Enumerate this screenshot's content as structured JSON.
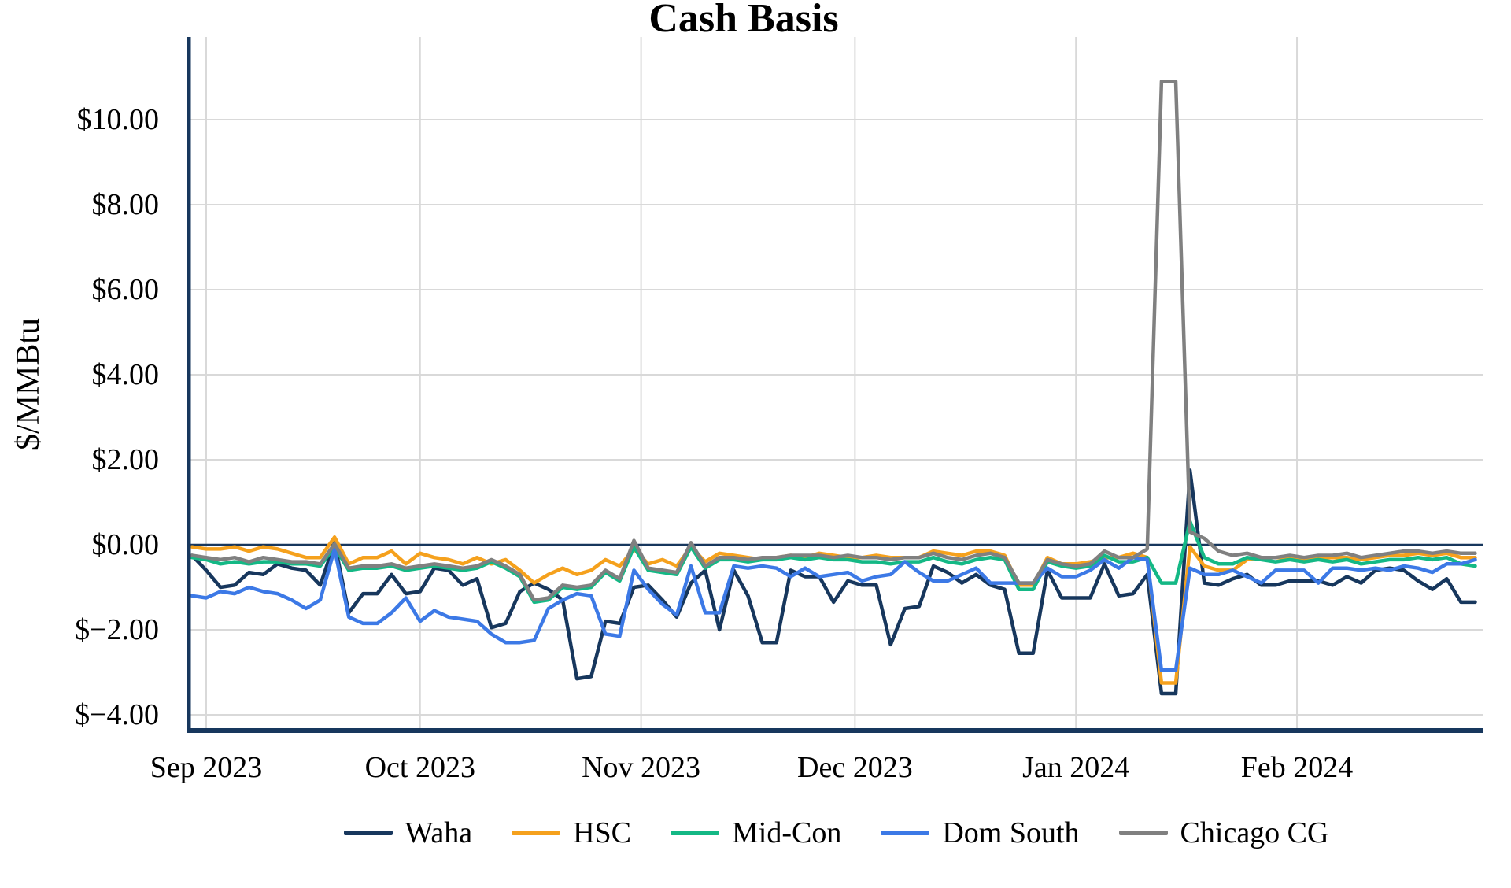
{
  "title": "Cash Basis",
  "y_axis": {
    "label": "$/MMBtu",
    "ticks": [
      {
        "label": "$10.00",
        "value": 10
      },
      {
        "label": "$8.00",
        "value": 8
      },
      {
        "label": "$6.00",
        "value": 6
      },
      {
        "label": "$4.00",
        "value": 4
      },
      {
        "label": "$2.00",
        "value": 2
      },
      {
        "label": "$0.00",
        "value": 0
      },
      {
        "label": "$−2.00",
        "value": -2
      },
      {
        "label": "$−4.00",
        "value": -4
      }
    ]
  },
  "x_axis": {
    "ticks": [
      {
        "label": "Sep 2023",
        "day": 0
      },
      {
        "label": "Oct 2023",
        "day": 30
      },
      {
        "label": "Nov 2023",
        "day": 61
      },
      {
        "label": "Dec 2023",
        "day": 91
      },
      {
        "label": "Jan 2024",
        "day": 122
      },
      {
        "label": "Feb 2024",
        "day": 153
      }
    ]
  },
  "colors": {
    "axis": "#17375d",
    "zero_line": "#17375d",
    "gridline": "#d9d9d9",
    "background": "#ffffff"
  },
  "chart_data": {
    "type": "line",
    "title": "Cash Basis",
    "xlabel": "",
    "ylabel": "$/MMBtu",
    "ylim": [
      -4.6,
      11.95
    ],
    "grid": true,
    "legend_position": "bottom",
    "x_description": "daily values, days since Sep 1 2023 (sampled every 2 days)",
    "x_start_day": -2,
    "x_step_days": 2,
    "x_tick_days": [
      0,
      30,
      61,
      91,
      122,
      153
    ],
    "x_tick_labels": [
      "Sep 2023",
      "Oct 2023",
      "Nov 2023",
      "Dec 2023",
      "Jan 2024",
      "Feb 2024"
    ],
    "series": [
      {
        "name": "Waha",
        "color": "#17375d",
        "values": [
          -0.25,
          -0.6,
          -1.0,
          -0.95,
          -0.65,
          -0.7,
          -0.45,
          -0.55,
          -0.6,
          -0.95,
          0.05,
          -1.6,
          -1.15,
          -1.15,
          -0.7,
          -1.15,
          -1.1,
          -0.55,
          -0.6,
          -0.95,
          -0.8,
          -1.95,
          -1.85,
          -1.1,
          -0.9,
          -1.05,
          -1.3,
          -3.15,
          -3.1,
          -1.8,
          -1.85,
          -1.0,
          -0.95,
          -1.3,
          -1.7,
          -0.9,
          -0.6,
          -2.0,
          -0.6,
          -1.2,
          -2.3,
          -2.3,
          -0.6,
          -0.75,
          -0.75,
          -1.35,
          -0.85,
          -0.95,
          -0.95,
          -2.35,
          -1.5,
          -1.45,
          -0.5,
          -0.65,
          -0.9,
          -0.7,
          -0.95,
          -1.05,
          -2.55,
          -2.55,
          -0.6,
          -1.25,
          -1.25,
          -1.25,
          -0.45,
          -1.2,
          -1.15,
          -0.7,
          -3.5,
          -3.5,
          1.75,
          -0.9,
          -0.95,
          -0.8,
          -0.7,
          -0.95,
          -0.95,
          -0.85,
          -0.85,
          -0.85,
          -0.95,
          -0.75,
          -0.9,
          -0.6,
          -0.55,
          -0.6,
          -0.85,
          -1.05,
          -0.8,
          -1.35,
          -1.35
        ]
      },
      {
        "name": "HSC",
        "color": "#f5a11d",
        "values": [
          -0.05,
          -0.1,
          -0.1,
          -0.05,
          -0.15,
          -0.05,
          -0.1,
          -0.2,
          -0.3,
          -0.3,
          0.18,
          -0.45,
          -0.3,
          -0.3,
          -0.15,
          -0.45,
          -0.2,
          -0.3,
          -0.35,
          -0.45,
          -0.3,
          -0.45,
          -0.35,
          -0.6,
          -0.9,
          -0.7,
          -0.55,
          -0.7,
          -0.6,
          -0.35,
          -0.5,
          -0.1,
          -0.45,
          -0.35,
          -0.5,
          -0.05,
          -0.4,
          -0.2,
          -0.25,
          -0.3,
          -0.35,
          -0.3,
          -0.25,
          -0.3,
          -0.2,
          -0.25,
          -0.3,
          -0.3,
          -0.25,
          -0.3,
          -0.3,
          -0.3,
          -0.15,
          -0.2,
          -0.25,
          -0.15,
          -0.15,
          -0.25,
          -0.95,
          -0.95,
          -0.3,
          -0.45,
          -0.45,
          -0.4,
          -0.3,
          -0.3,
          -0.2,
          -0.3,
          -3.25,
          -3.25,
          -0.05,
          -0.5,
          -0.6,
          -0.6,
          -0.35,
          -0.3,
          -0.3,
          -0.3,
          -0.35,
          -0.3,
          -0.3,
          -0.3,
          -0.35,
          -0.3,
          -0.25,
          -0.25,
          -0.2,
          -0.25,
          -0.2,
          -0.3,
          -0.3
        ]
      },
      {
        "name": "Mid-Con",
        "color": "#14b885",
        "values": [
          -0.3,
          -0.35,
          -0.45,
          -0.4,
          -0.45,
          -0.4,
          -0.4,
          -0.45,
          -0.45,
          -0.5,
          -0.05,
          -0.6,
          -0.55,
          -0.55,
          -0.5,
          -0.6,
          -0.55,
          -0.5,
          -0.55,
          -0.6,
          -0.55,
          -0.4,
          -0.55,
          -0.75,
          -1.35,
          -1.3,
          -1.0,
          -1.05,
          -1.0,
          -0.65,
          -0.85,
          -0.05,
          -0.6,
          -0.65,
          -0.7,
          -0.05,
          -0.55,
          -0.35,
          -0.35,
          -0.4,
          -0.35,
          -0.35,
          -0.3,
          -0.35,
          -0.3,
          -0.35,
          -0.35,
          -0.4,
          -0.4,
          -0.45,
          -0.4,
          -0.4,
          -0.3,
          -0.4,
          -0.45,
          -0.35,
          -0.3,
          -0.35,
          -1.05,
          -1.05,
          -0.4,
          -0.5,
          -0.55,
          -0.5,
          -0.25,
          -0.4,
          -0.4,
          -0.3,
          -0.9,
          -0.9,
          0.55,
          -0.3,
          -0.45,
          -0.45,
          -0.3,
          -0.35,
          -0.4,
          -0.35,
          -0.4,
          -0.35,
          -0.4,
          -0.35,
          -0.45,
          -0.4,
          -0.35,
          -0.35,
          -0.3,
          -0.35,
          -0.3,
          -0.45,
          -0.5
        ]
      },
      {
        "name": "Dom South",
        "color": "#3c79e6",
        "values": [
          -1.2,
          -1.25,
          -1.1,
          -1.15,
          -1.0,
          -1.1,
          -1.15,
          -1.3,
          -1.5,
          -1.3,
          -0.1,
          -1.7,
          -1.85,
          -1.85,
          -1.6,
          -1.25,
          -1.8,
          -1.55,
          -1.7,
          -1.75,
          -1.8,
          -2.1,
          -2.3,
          -2.3,
          -2.25,
          -1.5,
          -1.3,
          -1.15,
          -1.2,
          -2.1,
          -2.15,
          -0.6,
          -1.05,
          -1.4,
          -1.65,
          -0.5,
          -1.6,
          -1.6,
          -0.5,
          -0.55,
          -0.5,
          -0.55,
          -0.75,
          -0.55,
          -0.75,
          -0.7,
          -0.65,
          -0.85,
          -0.75,
          -0.7,
          -0.4,
          -0.65,
          -0.85,
          -0.85,
          -0.7,
          -0.55,
          -0.9,
          -0.9,
          -0.9,
          -0.9,
          -0.55,
          -0.75,
          -0.75,
          -0.6,
          -0.35,
          -0.55,
          -0.3,
          -0.35,
          -2.95,
          -2.95,
          -0.55,
          -0.7,
          -0.7,
          -0.6,
          -0.75,
          -0.9,
          -0.6,
          -0.6,
          -0.6,
          -0.9,
          -0.55,
          -0.55,
          -0.6,
          -0.55,
          -0.6,
          -0.5,
          -0.55,
          -0.65,
          -0.45,
          -0.45,
          -0.35
        ]
      },
      {
        "name": "Chicago CG",
        "color": "#808080",
        "values": [
          -0.25,
          -0.3,
          -0.35,
          -0.3,
          -0.4,
          -0.3,
          -0.35,
          -0.4,
          -0.4,
          -0.45,
          0.02,
          -0.55,
          -0.5,
          -0.5,
          -0.45,
          -0.55,
          -0.5,
          -0.45,
          -0.5,
          -0.55,
          -0.5,
          -0.35,
          -0.5,
          -0.7,
          -1.3,
          -1.25,
          -0.95,
          -1.0,
          -0.95,
          -0.6,
          -0.8,
          0.1,
          -0.55,
          -0.6,
          -0.65,
          0.05,
          -0.5,
          -0.3,
          -0.3,
          -0.35,
          -0.3,
          -0.3,
          -0.25,
          -0.25,
          -0.25,
          -0.3,
          -0.25,
          -0.3,
          -0.3,
          -0.35,
          -0.3,
          -0.3,
          -0.2,
          -0.3,
          -0.35,
          -0.25,
          -0.2,
          -0.3,
          -0.9,
          -0.9,
          -0.35,
          -0.45,
          -0.5,
          -0.45,
          -0.15,
          -0.3,
          -0.3,
          -0.1,
          10.9,
          10.9,
          0.3,
          0.15,
          -0.15,
          -0.25,
          -0.2,
          -0.3,
          -0.3,
          -0.25,
          -0.3,
          -0.25,
          -0.25,
          -0.2,
          -0.3,
          -0.25,
          -0.2,
          -0.15,
          -0.15,
          -0.2,
          -0.15,
          -0.2,
          -0.2
        ]
      }
    ]
  }
}
